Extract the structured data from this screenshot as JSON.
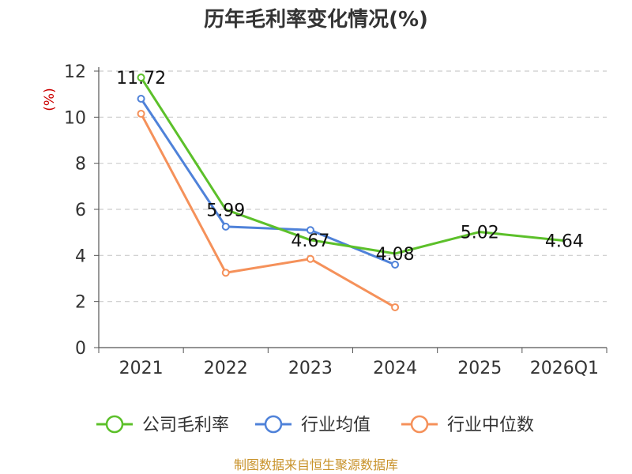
{
  "chart_data": {
    "type": "line",
    "title": "历年毛利率变化情况(%)",
    "ylabel": "(%)",
    "xlabel": "",
    "categories": [
      "2021",
      "2022",
      "2023",
      "2024",
      "2025",
      "2026Q1"
    ],
    "ylim": [
      0,
      12
    ],
    "yticks": [
      0,
      2,
      4,
      6,
      8,
      10,
      12
    ],
    "grid": true,
    "legend_position": "bottom",
    "series": [
      {
        "name": "公司毛利率",
        "color": "#5cc02a",
        "values": [
          11.72,
          5.99,
          4.67,
          4.08,
          5.02,
          4.64
        ],
        "labels": [
          "11.72",
          "5.99",
          "4.67",
          "4.08",
          "5.02",
          "4.64"
        ]
      },
      {
        "name": "行业均值",
        "color": "#4f82d9",
        "values": [
          10.8,
          5.25,
          5.1,
          3.6,
          null,
          null
        ]
      },
      {
        "name": "行业中位数",
        "color": "#f5915a",
        "values": [
          10.15,
          3.25,
          3.85,
          1.75,
          null,
          null
        ]
      }
    ]
  },
  "source": "制图数据来自恒生聚源数据库"
}
